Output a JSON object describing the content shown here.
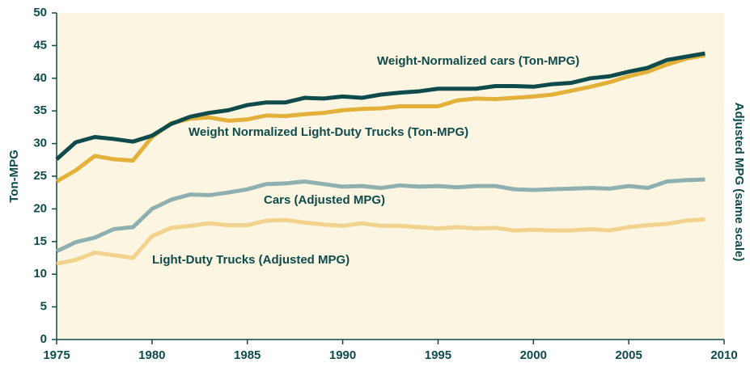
{
  "chart_data": {
    "type": "line",
    "y_label": "Ton-MPG",
    "y2_label": "Adjusted MPG (same scale)",
    "x": [
      1975,
      1976,
      1977,
      1978,
      1979,
      1980,
      1981,
      1982,
      1983,
      1984,
      1985,
      1986,
      1987,
      1988,
      1989,
      1990,
      1991,
      1992,
      1993,
      1994,
      1995,
      1996,
      1997,
      1998,
      1999,
      2000,
      2001,
      2002,
      2003,
      2004,
      2005,
      2006,
      2007,
      2008,
      2009
    ],
    "xlim": [
      1975,
      2010
    ],
    "xticks": [
      1975,
      1980,
      1985,
      1990,
      1995,
      2000,
      2005,
      2010
    ],
    "ylim": [
      0,
      50
    ],
    "yticks": [
      0,
      5,
      10,
      15,
      20,
      25,
      30,
      35,
      40,
      45,
      50
    ],
    "grid": false,
    "series": [
      {
        "name": "Weight-Normalized cars (Ton-MPG)",
        "color": "#0f4b4b",
        "values": [
          27.6,
          30.2,
          31.0,
          30.7,
          30.3,
          31.2,
          33.0,
          34.1,
          34.7,
          35.1,
          35.9,
          36.3,
          36.3,
          37.0,
          36.9,
          37.2,
          37.0,
          37.5,
          37.8,
          38.0,
          38.4,
          38.4,
          38.4,
          38.8,
          38.8,
          38.7,
          39.1,
          39.3,
          40.0,
          40.3,
          41.0,
          41.6,
          42.8,
          43.3,
          43.8
        ]
      },
      {
        "name": "Weight Normalized Light-Duty Trucks (Ton-MPG)",
        "color": "#e3b03a",
        "values": [
          24.2,
          25.9,
          28.1,
          27.6,
          27.4,
          31.0,
          33.1,
          33.8,
          34.0,
          33.5,
          33.7,
          34.3,
          34.2,
          34.5,
          34.7,
          35.1,
          35.3,
          35.4,
          35.7,
          35.7,
          35.7,
          36.6,
          36.9,
          36.8,
          37.0,
          37.2,
          37.5,
          38.1,
          38.7,
          39.4,
          40.3,
          41.0,
          42.1,
          43.0,
          43.5
        ]
      },
      {
        "name": "Cars (Adjusted MPG)",
        "color": "#8fb0b0",
        "values": [
          13.5,
          14.9,
          15.6,
          16.9,
          17.2,
          20.0,
          21.4,
          22.2,
          22.1,
          22.5,
          23.0,
          23.8,
          23.9,
          24.2,
          23.8,
          23.4,
          23.5,
          23.2,
          23.6,
          23.4,
          23.5,
          23.3,
          23.5,
          23.5,
          23.0,
          22.9,
          23.0,
          23.1,
          23.2,
          23.1,
          23.5,
          23.2,
          24.2,
          24.4,
          24.5
        ]
      },
      {
        "name": "Light-Duty Trucks (Adjusted MPG)",
        "color": "#f1d38e",
        "values": [
          11.6,
          12.2,
          13.3,
          12.9,
          12.5,
          15.8,
          17.1,
          17.4,
          17.8,
          17.5,
          17.5,
          18.2,
          18.3,
          17.9,
          17.6,
          17.4,
          17.8,
          17.4,
          17.4,
          17.2,
          17.0,
          17.2,
          17.0,
          17.1,
          16.7,
          16.8,
          16.7,
          16.7,
          16.9,
          16.7,
          17.2,
          17.5,
          17.7,
          18.2,
          18.4
        ]
      }
    ]
  }
}
